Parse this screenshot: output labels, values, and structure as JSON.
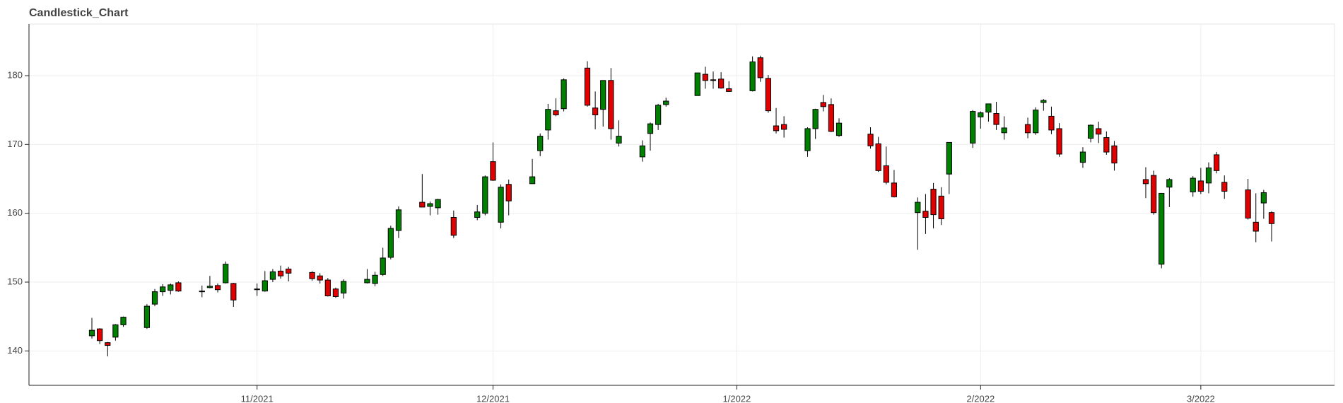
{
  "chart_data": {
    "type": "candlestick",
    "title": "Candlestick_Chart",
    "x": [
      "2021-10-11",
      "2021-10-12",
      "2021-10-13",
      "2021-10-14",
      "2021-10-15",
      "2021-10-18",
      "2021-10-19",
      "2021-10-20",
      "2021-10-21",
      "2021-10-22",
      "2021-10-25",
      "2021-10-26",
      "2021-10-27",
      "2021-10-28",
      "2021-10-29",
      "2021-11-01",
      "2021-11-02",
      "2021-11-03",
      "2021-11-04",
      "2021-11-05",
      "2021-11-08",
      "2021-11-09",
      "2021-11-10",
      "2021-11-11",
      "2021-11-12",
      "2021-11-15",
      "2021-11-16",
      "2021-11-17",
      "2021-11-18",
      "2021-11-19",
      "2021-11-22",
      "2021-11-23",
      "2021-11-24",
      "2021-11-26",
      "2021-11-29",
      "2021-11-30",
      "2021-12-01",
      "2021-12-02",
      "2021-12-03",
      "2021-12-06",
      "2021-12-07",
      "2021-12-08",
      "2021-12-09",
      "2021-12-10",
      "2021-12-13",
      "2021-12-14",
      "2021-12-15",
      "2021-12-16",
      "2021-12-17",
      "2021-12-20",
      "2021-12-21",
      "2021-12-22",
      "2021-12-23",
      "2021-12-27",
      "2021-12-28",
      "2021-12-29",
      "2021-12-30",
      "2021-12-31",
      "2022-01-03",
      "2022-01-04",
      "2022-01-05",
      "2022-01-06",
      "2022-01-07",
      "2022-01-10",
      "2022-01-11",
      "2022-01-12",
      "2022-01-13",
      "2022-01-14",
      "2022-01-18",
      "2022-01-19",
      "2022-01-20",
      "2022-01-21",
      "2022-01-24",
      "2022-01-25",
      "2022-01-26",
      "2022-01-27",
      "2022-01-28",
      "2022-01-31",
      "2022-02-01",
      "2022-02-02",
      "2022-02-03",
      "2022-02-04",
      "2022-02-07",
      "2022-02-08",
      "2022-02-09",
      "2022-02-10",
      "2022-02-11",
      "2022-02-14",
      "2022-02-15",
      "2022-02-16",
      "2022-02-17",
      "2022-02-18",
      "2022-02-22",
      "2022-02-23",
      "2022-02-24",
      "2022-02-25",
      "2022-02-28",
      "2022-03-01",
      "2022-03-02",
      "2022-03-03",
      "2022-03-04",
      "2022-03-07",
      "2022-03-08",
      "2022-03-09",
      "2022-03-10"
    ],
    "open": [
      142.2,
      143.2,
      141.2,
      142,
      143.8,
      143.4,
      146.8,
      148.6,
      148.8,
      149.9,
      148.6,
      149.2,
      149.5,
      149.9,
      149.8,
      148.9,
      148.7,
      150.4,
      151.6,
      151.9,
      151.4,
      150.9,
      150.3,
      149,
      148.4,
      149.9,
      149.8,
      151.1,
      153.6,
      157.5,
      161.6,
      161,
      160.8,
      159.4,
      159.4,
      160,
      167.5,
      158.7,
      164.2,
      164.3,
      169.1,
      172.1,
      174.9,
      175.2,
      181.1,
      175.3,
      175.1,
      179.3,
      170.2,
      168.2,
      171.6,
      172.9,
      175.8,
      177.1,
      180.2,
      179.3,
      179.5,
      178.1,
      177.8,
      182.6,
      179.6,
      172.7,
      172.9,
      169.1,
      172.3,
      176.1,
      175.8,
      171.3,
      171.5,
      170.1,
      166.9,
      164.4,
      160.1,
      160.3,
      163.5,
      162.5,
      165.7,
      170.2,
      174,
      174.7,
      174.5,
      171.7,
      172.9,
      171.7,
      176.1,
      174.1,
      172.3,
      167.4,
      170.9,
      172.3,
      171,
      169.8,
      164.9,
      165.5,
      152.6,
      163.8,
      163.1,
      164.7,
      164.4,
      168.5,
      164.5,
      163.4,
      158.7,
      161.5,
      160.1
    ],
    "high": [
      144.8,
      143.3,
      141.3,
      143.9,
      145,
      146.8,
      149,
      149.7,
      149.8,
      150.1,
      149.5,
      150.9,
      149.8,
      153,
      149.9,
      149.8,
      151.6,
      151.9,
      152.4,
      152.2,
      151.6,
      151.3,
      150.6,
      149.2,
      150.4,
      151.9,
      151.5,
      155,
      158.2,
      161,
      165.7,
      161.7,
      162.1,
      160.4,
      161.2,
      165.5,
      170.3,
      164.2,
      164.9,
      167.9,
      171.6,
      175.9,
      176.7,
      179.6,
      182.1,
      177.7,
      179.3,
      181.1,
      173.5,
      170.6,
      173.2,
      175.9,
      176.8,
      180.4,
      181.3,
      180.6,
      180.5,
      179.2,
      182.8,
      182.9,
      180.1,
      175.3,
      174.1,
      172.5,
      175.2,
      177.2,
      176.7,
      173.8,
      172.5,
      171.1,
      169.7,
      166.3,
      162.3,
      162.8,
      164.4,
      163.8,
      170.3,
      175,
      174.8,
      175.9,
      176.2,
      174.1,
      173.9,
      175.4,
      176.6,
      175.5,
      173.1,
      169.6,
      172.9,
      173.3,
      171.9,
      170.5,
      166.7,
      166.2,
      162.9,
      165.1,
      165.4,
      166.6,
      167.4,
      168.9,
      165.5,
      165,
      162.9,
      163.4,
      160.3
    ],
    "low": [
      141.8,
      141,
      139.2,
      141.5,
      143.5,
      143.2,
      146.5,
      148,
      148.2,
      148.6,
      147.8,
      149.1,
      148.5,
      149.8,
      146.4,
      148,
      148.6,
      150,
      150.5,
      150.1,
      150.2,
      149.8,
      147.9,
      147.7,
      147.6,
      149.8,
      149.4,
      150.9,
      153.3,
      156.4,
      160.9,
      159.7,
      159.8,
      156.4,
      159,
      159.7,
      164.7,
      157.8,
      159.7,
      164.3,
      168.3,
      170.7,
      174.1,
      174.8,
      175.5,
      172.2,
      172.6,
      170.7,
      169.7,
      167.5,
      169.1,
      172.1,
      175.5,
      177.1,
      178.1,
      178.1,
      178.1,
      177.7,
      177.7,
      179.1,
      174.6,
      171.6,
      171,
      168.2,
      170.8,
      174.8,
      171.8,
      171.1,
      169.4,
      166,
      164.2,
      162.3,
      154.7,
      157,
      157.8,
      158.3,
      162.8,
      169.5,
      172.3,
      173.3,
      172.1,
      170.7,
      170.9,
      171.4,
      174.9,
      171.5,
      168.2,
      166.6,
      170.3,
      170.2,
      168.5,
      166.2,
      162.2,
      159.8,
      152,
      160.9,
      162.4,
      162.8,
      162.9,
      165.8,
      162.1,
      159.1,
      155.8,
      159.2,
      155.9
    ],
    "close": [
      143,
      141.5,
      140.8,
      143.8,
      144.9,
      146.5,
      148.6,
      149.3,
      149.6,
      148.7,
      148.7,
      149.4,
      148.9,
      152.6,
      147.4,
      149,
      150.2,
      151.5,
      150.9,
      151.3,
      150.5,
      150.3,
      148,
      147.9,
      150.1,
      150.4,
      151,
      153.5,
      157.8,
      160.5,
      160.9,
      161.4,
      162,
      156.8,
      160.2,
      165.3,
      164.8,
      163.8,
      161.8,
      165.3,
      171.2,
      175.1,
      174.3,
      179.4,
      175.7,
      174.3,
      179.3,
      172.3,
      171.2,
      169.8,
      173,
      175.7,
      176.3,
      180.4,
      179.3,
      179.4,
      178.2,
      177.7,
      182,
      179.7,
      174.9,
      172,
      172.2,
      172.3,
      175.1,
      175.5,
      171.9,
      173.1,
      169.8,
      166.2,
      164.5,
      162.4,
      161.6,
      159.4,
      159.8,
      159.2,
      170.3,
      174.8,
      174.6,
      175.9,
      172.9,
      172.4,
      171.7,
      175,
      176.4,
      172.1,
      168.6,
      168.9,
      172.8,
      171.5,
      168.9,
      167.3,
      164.3,
      160.1,
      162.9,
      164.9,
      165.1,
      163.2,
      166.6,
      166.2,
      163.2,
      159.3,
      157.4,
      163,
      158.5
    ],
    "up_color": "#008000",
    "down_color": "#e00000",
    "xlim": [
      "2021-10-03",
      "2022-03-18"
    ],
    "xticks": [
      {
        "value": "2021-11-01",
        "label": "11/2021"
      },
      {
        "value": "2021-12-01",
        "label": "12/2021"
      },
      {
        "value": "2022-01-01",
        "label": "1/2022"
      },
      {
        "value": "2022-02-01",
        "label": "2/2022"
      },
      {
        "value": "2022-03-01",
        "label": "3/2022"
      }
    ],
    "ylim": [
      135,
      187.5
    ],
    "yticks": [
      140,
      150,
      160,
      170,
      180
    ],
    "grid": true
  }
}
